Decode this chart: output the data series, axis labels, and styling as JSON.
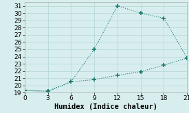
{
  "xlabel": "Humidex (Indice chaleur)",
  "bg_color": "#d8eeee",
  "grid_color": "#b8d8d8",
  "line_color": "#1a7a6e",
  "xlim": [
    0,
    21
  ],
  "ylim": [
    19,
    31.5
  ],
  "xticks": [
    0,
    3,
    6,
    9,
    12,
    15,
    18,
    21
  ],
  "yticks": [
    19,
    20,
    21,
    22,
    23,
    24,
    25,
    26,
    27,
    28,
    29,
    30,
    31
  ],
  "upper_x": [
    0,
    3,
    6,
    9,
    12,
    15,
    18,
    21
  ],
  "upper_y": [
    19.3,
    19.2,
    20.5,
    25.0,
    31.0,
    30.0,
    29.3,
    23.8
  ],
  "lower_x": [
    0,
    3,
    6,
    9,
    12,
    15,
    18,
    21
  ],
  "lower_y": [
    19.3,
    19.2,
    20.5,
    20.8,
    21.4,
    21.9,
    22.8,
    23.8
  ],
  "marker": "+",
  "markersize": 4.5,
  "markeredgewidth": 1.2,
  "linewidth": 0.8,
  "xlabel_fontsize": 7.5,
  "tick_fontsize": 6.5
}
